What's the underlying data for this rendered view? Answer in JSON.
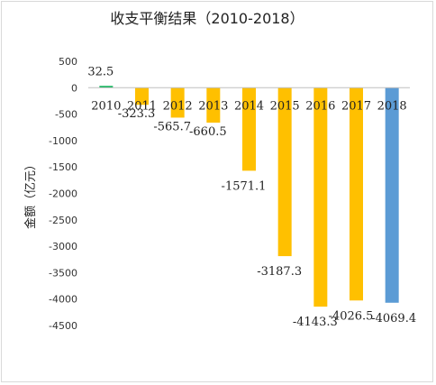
{
  "chart_data": {
    "type": "bar",
    "title": "收支平衡结果（2010-2018）",
    "ylabel": "金额（亿元）",
    "xlabel": "",
    "categories": [
      "2010",
      "2011",
      "2012",
      "2013",
      "2014",
      "2015",
      "2016",
      "2017",
      "2018"
    ],
    "values": [
      32.5,
      -323.3,
      -565.7,
      -660.5,
      -1571.1,
      -3187.3,
      -4143.3,
      -4026.5,
      -4069.4
    ],
    "data_labels": [
      "32.5",
      "-323.3",
      "-565.7",
      "-660.5",
      "-1571.1",
      "-3187.3",
      "-4143.3",
      "-4026.5",
      "-4069.4"
    ],
    "colors": [
      "#00b050",
      "#ffc000",
      "#ffc000",
      "#ffc000",
      "#ffc000",
      "#ffc000",
      "#ffc000",
      "#ffc000",
      "#5b9bd5"
    ],
    "ylim": [
      -4500,
      500
    ],
    "yticks": [
      500,
      0,
      -500,
      -1000,
      -1500,
      -2000,
      -2500,
      -3000,
      -3500,
      -4000,
      -4500
    ],
    "ytick_labels": [
      "500",
      "0",
      "-500",
      "-1000",
      "-1500",
      "-2000",
      "-2500",
      "-3000",
      "-3500",
      "-4000",
      "-4500"
    ],
    "grid": false,
    "legend": "none"
  }
}
